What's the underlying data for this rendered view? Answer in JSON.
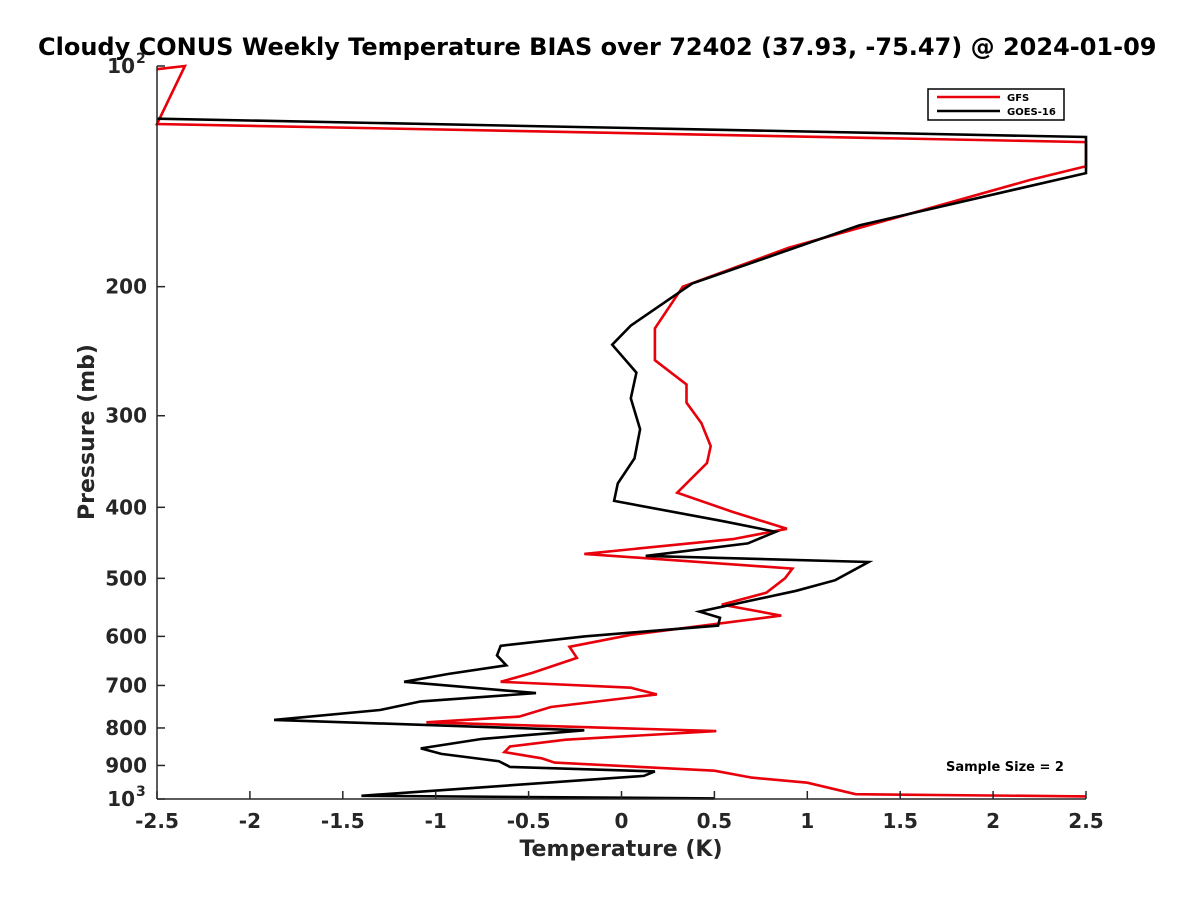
{
  "chart_data": {
    "type": "line",
    "title": "Cloudy CONUS Weekly Temperature BIAS over 72402 (37.93, -75.47) @ 2024-01-09",
    "xlabel": "Temperature (K)",
    "ylabel": "Pressure (mb)",
    "xlim": [
      -2.5,
      2.5
    ],
    "ylim": [
      1000,
      100
    ],
    "yscale": "log",
    "grid": false,
    "legend_position": "top-right",
    "x_ticks": [
      "-2.5",
      "-2",
      "-1.5",
      "-1",
      "-0.5",
      "0",
      "0.5",
      "1",
      "1.5",
      "2",
      "2.5"
    ],
    "y_ticks": [
      {
        "value": 100,
        "base": "10",
        "exp": "2"
      },
      {
        "value": 200,
        "label": "200"
      },
      {
        "value": 300,
        "label": "300"
      },
      {
        "value": 400,
        "label": "400"
      },
      {
        "value": 500,
        "label": "500"
      },
      {
        "value": 600,
        "label": "600"
      },
      {
        "value": 700,
        "label": "700"
      },
      {
        "value": 800,
        "label": "800"
      },
      {
        "value": 900,
        "label": "900"
      },
      {
        "value": 1000,
        "base": "10",
        "exp": "3"
      }
    ],
    "annotation": "Sample Size = 2",
    "series": [
      {
        "name": "GFS",
        "color": "#e8000b",
        "points": [
          [
            -2.5,
            101
          ],
          [
            -2.35,
            100
          ],
          [
            -2.5,
            120
          ],
          [
            2.5,
            127
          ],
          [
            2.5,
            137
          ],
          [
            2.2,
            143
          ],
          [
            0.9,
            177
          ],
          [
            0.33,
            200
          ],
          [
            0.18,
            228
          ],
          [
            0.18,
            252
          ],
          [
            0.35,
            272
          ],
          [
            0.35,
            288
          ],
          [
            0.43,
            307
          ],
          [
            0.48,
            330
          ],
          [
            0.46,
            348
          ],
          [
            0.3,
            382
          ],
          [
            0.6,
            406
          ],
          [
            0.89,
            428
          ],
          [
            0.6,
            442
          ],
          [
            -0.2,
            463
          ],
          [
            0.92,
            485
          ],
          [
            0.88,
            500
          ],
          [
            0.78,
            523
          ],
          [
            0.54,
            543
          ],
          [
            0.86,
            562
          ],
          [
            0.05,
            597
          ],
          [
            -0.28,
            620
          ],
          [
            -0.24,
            642
          ],
          [
            -0.48,
            673
          ],
          [
            -0.65,
            692
          ],
          [
            0.05,
            705
          ],
          [
            0.19,
            720
          ],
          [
            -0.38,
            749
          ],
          [
            -0.55,
            772
          ],
          [
            -1.05,
            786
          ],
          [
            0.51,
            808
          ],
          [
            -0.3,
            830
          ],
          [
            -0.6,
            848
          ],
          [
            -0.63,
            863
          ],
          [
            -0.43,
            880
          ],
          [
            -0.36,
            892
          ],
          [
            0.5,
            915
          ],
          [
            0.7,
            935
          ],
          [
            1.0,
            950
          ],
          [
            1.26,
            985
          ],
          [
            2.5,
            992
          ]
        ]
      },
      {
        "name": "GOES-16",
        "color": "#000000",
        "points": [
          [
            -2.5,
            118
          ],
          [
            2.5,
            125
          ],
          [
            2.5,
            140
          ],
          [
            1.28,
            165
          ],
          [
            0.38,
            198
          ],
          [
            0.05,
            226
          ],
          [
            -0.05,
            240
          ],
          [
            0.08,
            262
          ],
          [
            0.05,
            284
          ],
          [
            0.1,
            313
          ],
          [
            0.07,
            343
          ],
          [
            -0.02,
            371
          ],
          [
            -0.04,
            392
          ],
          [
            0.55,
            418
          ],
          [
            0.83,
            432
          ],
          [
            0.68,
            448
          ],
          [
            0.13,
            466
          ],
          [
            1.33,
            475
          ],
          [
            1.15,
            503
          ],
          [
            0.94,
            520
          ],
          [
            0.42,
            555
          ],
          [
            0.53,
            566
          ],
          [
            0.52,
            580
          ],
          [
            -0.2,
            600
          ],
          [
            -0.65,
            618
          ],
          [
            -0.67,
            637
          ],
          [
            -0.62,
            657
          ],
          [
            -0.93,
            675
          ],
          [
            -1.17,
            692
          ],
          [
            -0.46,
            717
          ],
          [
            -1.08,
            736
          ],
          [
            -1.3,
            756
          ],
          [
            -1.87,
            780
          ],
          [
            -0.2,
            806
          ],
          [
            -0.75,
            828
          ],
          [
            -1.08,
            853
          ],
          [
            -0.97,
            868
          ],
          [
            -0.66,
            888
          ],
          [
            -0.6,
            904
          ],
          [
            0.18,
            917
          ],
          [
            0.12,
            930
          ],
          [
            -1.4,
            990
          ],
          [
            0.5,
            998
          ]
        ]
      }
    ]
  }
}
